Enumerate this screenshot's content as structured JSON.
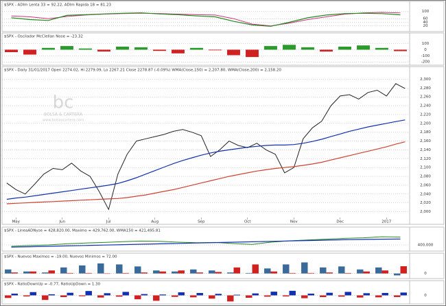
{
  "watermark": {
    "logo": "bc",
    "name": "BOLSA & CARTERA",
    "url": "www.bolsaycartera.com"
  },
  "chart_data": [
    {
      "type": "line",
      "title": "$SPX - ADIm Lenta 33 = 92.22, ADIm Rapida 18 = 81.23",
      "ylim": [
        0,
        110
      ],
      "yticks": [
        20,
        40,
        60,
        100
      ],
      "grid": true,
      "series": [
        {
          "name": "ADIm Lenta 33",
          "color": "#cc3377",
          "values": [
            75,
            70,
            60,
            72,
            80,
            85,
            88,
            90,
            88,
            85,
            82,
            80,
            60,
            30,
            20,
            35,
            55,
            70,
            85,
            92,
            95,
            92.22
          ]
        },
        {
          "name": "ADIm Rapida 18",
          "color": "#228822",
          "values": [
            65,
            55,
            50,
            78,
            82,
            86,
            90,
            92,
            86,
            82,
            75,
            70,
            45,
            25,
            18,
            40,
            65,
            80,
            88,
            90,
            88,
            81.23
          ]
        }
      ]
    },
    {
      "type": "bar",
      "title": "$SPX - Oscilador McClellan Nose = -23.32",
      "ylim": [
        -220,
        140
      ],
      "yticks": [
        -200,
        -100,
        0,
        100
      ],
      "grid": true,
      "positive_color": "#2a9a2a",
      "negative_color": "#d02020",
      "series": [
        {
          "name": "Oscilador McClellan",
          "values": [
            -40,
            -80,
            30,
            60,
            20,
            -30,
            50,
            40,
            -20,
            -60,
            30,
            -10,
            -90,
            -120,
            60,
            80,
            40,
            -30,
            50,
            70,
            30,
            -23.32
          ]
        }
      ]
    },
    {
      "type": "line",
      "title": "$SPX - Daily 31/01/2017 Open 2274.02, Hi 2279.09, Lo 2267.21 Close 2278.87 (-0.09%) WMA(Close,150) = 2,207.80, WMA(Close,200) = 2,158.20",
      "ylim": [
        1990,
        2310
      ],
      "grid": true,
      "yticks": [
        {
          "value": 2000,
          "label": "2,000"
        },
        {
          "value": 2020,
          "label": "2,020"
        },
        {
          "value": 2040,
          "label": "2,040"
        },
        {
          "value": 2060,
          "label": "2,060"
        },
        {
          "value": 2080,
          "label": "2,080"
        },
        {
          "value": 2100,
          "label": "2,100"
        },
        {
          "value": 2120,
          "label": "2,120"
        },
        {
          "value": 2140,
          "label": "2,140"
        },
        {
          "value": 2160,
          "label": "2,160"
        },
        {
          "value": 2180,
          "label": "2,180"
        },
        {
          "value": 2200,
          "label": "2,200"
        },
        {
          "value": 2220,
          "label": "2,220"
        },
        {
          "value": 2240,
          "label": "2,240"
        },
        {
          "value": 2260,
          "label": "2,260"
        },
        {
          "value": 2280,
          "label": "2,280"
        },
        {
          "value": 2300,
          "label": "2,300"
        }
      ],
      "categories": [
        null,
        "May",
        null,
        null,
        null,
        null,
        "Jun",
        null,
        null,
        null,
        null,
        "Jul",
        null,
        null,
        null,
        null,
        "Aug",
        null,
        null,
        null,
        null,
        "Sep",
        null,
        null,
        null,
        null,
        "Oct",
        null,
        null,
        null,
        null,
        "Nov",
        null,
        null,
        null,
        null,
        "Dec",
        null,
        null,
        null,
        null,
        "2017",
        null,
        null
      ],
      "series": [
        {
          "name": "Close",
          "color": "#222222",
          "values": [
            2065,
            2050,
            2040,
            2062,
            2085,
            2098,
            2095,
            2110,
            2092,
            2080,
            2045,
            2005,
            2085,
            2130,
            2160,
            2165,
            2170,
            2175,
            2182,
            2186,
            2180,
            2172,
            2125,
            2140,
            2160,
            2150,
            2145,
            2155,
            2140,
            2130,
            2088,
            2100,
            2165,
            2190,
            2205,
            2240,
            2262,
            2265,
            2255,
            2270,
            2275,
            2262,
            2290,
            2278.87
          ]
        },
        {
          "name": "WMA(Close,150)",
          "color": "#1030b0",
          "values": [
            2028,
            2031,
            2033,
            2036,
            2039,
            2042,
            2045,
            2048,
            2051,
            2054,
            2057,
            2060,
            2064,
            2070,
            2077,
            2085,
            2093,
            2101,
            2109,
            2116,
            2122,
            2128,
            2133,
            2137,
            2140,
            2143,
            2146,
            2148,
            2150,
            2151,
            2151,
            2152,
            2155,
            2159,
            2164,
            2170,
            2176,
            2182,
            2187,
            2192,
            2196,
            2200,
            2204,
            2207.8
          ]
        },
        {
          "name": "WMA(Close,200)",
          "color": "#d04030",
          "values": [
            2018,
            2019,
            2020,
            2021,
            2022,
            2023,
            2024,
            2025,
            2026,
            2027,
            2028,
            2029,
            2030,
            2032,
            2035,
            2038,
            2042,
            2046,
            2050,
            2055,
            2060,
            2065,
            2070,
            2075,
            2080,
            2084,
            2088,
            2092,
            2095,
            2098,
            2100,
            2102,
            2105,
            2108,
            2112,
            2117,
            2122,
            2127,
            2132,
            2137,
            2142,
            2147,
            2153,
            2158.2
          ]
        }
      ]
    },
    {
      "type": "line",
      "title": "$SPX - LineaADNyse = 428,820.00, Maximo = 429,762.00, WMA150 = 421,495.81",
      "ylim": [
        385000,
        435000
      ],
      "yticks": [
        {
          "value": 400000,
          "label": "400,000"
        }
      ],
      "grid": true,
      "series": [
        {
          "name": "LineaADNyse",
          "color": "#228822",
          "values": [
            395000,
            398000,
            400000,
            404000,
            407000,
            409000,
            412000,
            414000,
            413000,
            410000,
            408000,
            409000,
            405000,
            402000,
            410000,
            415000,
            418000,
            421000,
            424000,
            426000,
            429762,
            428820
          ]
        },
        {
          "name": "WMA150",
          "color": "#1030b0",
          "values": [
            392000,
            393500,
            395000,
            396500,
            398000,
            399500,
            401000,
            402500,
            404000,
            405500,
            407000,
            408500,
            410000,
            411500,
            413000,
            414500,
            416000,
            417500,
            419000,
            420000,
            421000,
            421495.81
          ]
        }
      ]
    },
    {
      "type": "bar",
      "title": "$SPX - Nuevos Maximos = -19.00, Nuevos Minimos = 72.00",
      "ylim": [
        -30,
        120
      ],
      "yticks": [
        0
      ],
      "grid": true,
      "series": [
        {
          "name": "Nuevos Maximos",
          "color": "#3a6a9a",
          "values": [
            40,
            20,
            10,
            60,
            80,
            100,
            90,
            70,
            30,
            20,
            40,
            30,
            10,
            5,
            50,
            90,
            110,
            60,
            70,
            40,
            60,
            -19
          ]
        },
        {
          "name": "Nuevos Minimos",
          "color": "#d02020",
          "values": [
            10,
            20,
            30,
            5,
            5,
            0,
            5,
            10,
            20,
            30,
            10,
            15,
            60,
            90,
            20,
            5,
            5,
            10,
            5,
            20,
            30,
            72
          ]
        }
      ]
    },
    {
      "type": "bar",
      "title": "$SPX - RatioDownUp = -0.77, RatioUpDown = 1.30",
      "ylim": [
        -3,
        3
      ],
      "yticks": [
        0
      ],
      "grid": true,
      "series": [
        {
          "name": "RatioDownUp",
          "color": "#d02020",
          "values": [
            -1.2,
            -0.5,
            -2.1,
            -0.8,
            -0.4,
            -1.0,
            -0.6,
            -1.8,
            -2.5,
            -0.7,
            -0.9,
            -1.5,
            -2.8,
            -1.1,
            -0.6,
            -0.5,
            -1.3,
            -0.8,
            -0.6,
            -1.0,
            -0.9,
            -0.77
          ]
        },
        {
          "name": "RatioUpDown",
          "color": "#1030b0",
          "values": [
            0.8,
            1.5,
            0.5,
            1.2,
            2.0,
            1.0,
            1.6,
            0.6,
            0.4,
            1.4,
            1.1,
            0.7,
            0.3,
            0.9,
            1.7,
            2.1,
            0.8,
            1.2,
            1.6,
            1.0,
            1.1,
            1.3
          ]
        }
      ]
    }
  ]
}
